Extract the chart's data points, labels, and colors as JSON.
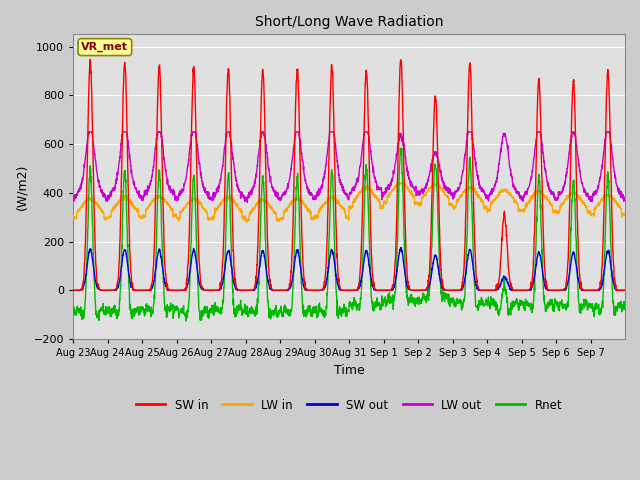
{
  "title": "Short/Long Wave Radiation",
  "xlabel": "Time",
  "ylabel": "(W/m2)",
  "ylim": [
    -200,
    1050
  ],
  "yticks": [
    -200,
    0,
    200,
    400,
    600,
    800,
    1000
  ],
  "station_label": "VR_met",
  "series": {
    "SW_in": {
      "color": "#ff0000",
      "label": "SW in"
    },
    "LW_in": {
      "color": "#ffa500",
      "label": "LW in"
    },
    "SW_out": {
      "color": "#0000dd",
      "label": "SW out"
    },
    "LW_out": {
      "color": "#cc00cc",
      "label": "LW out"
    },
    "Rnet": {
      "color": "#00bb00",
      "label": "Rnet"
    }
  },
  "xtick_labels": [
    "Aug 23",
    "Aug 24",
    "Aug 25",
    "Aug 26",
    "Aug 27",
    "Aug 28",
    "Aug 29",
    "Aug 30",
    "Aug 31",
    "Sep 1",
    "Sep 2",
    "Sep 3",
    "Sep 4",
    "Sep 5",
    "Sep 6",
    "Sep 7"
  ],
  "n_days": 16,
  "pts_per_day": 144,
  "background_color": "#cccccc",
  "plot_bg_color": "#e0e0e0"
}
